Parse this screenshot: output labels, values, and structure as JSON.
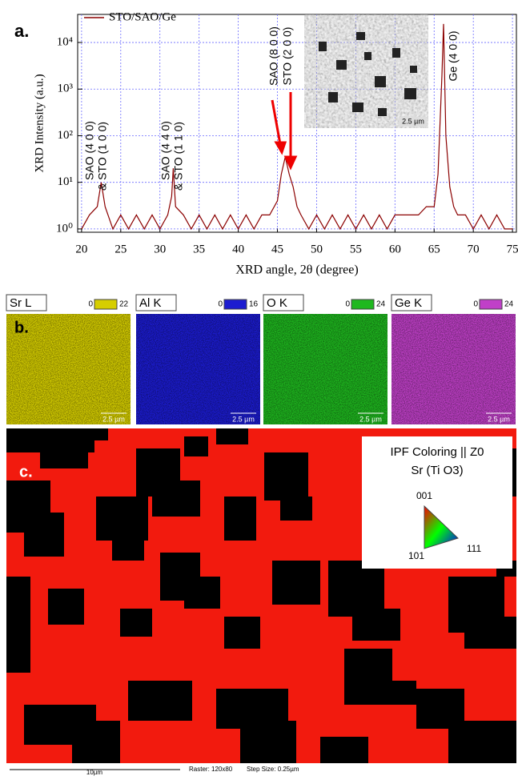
{
  "chart_data": {
    "type": "line",
    "panel_label": "a.",
    "xlabel": "XRD angle, 2θ (degree)",
    "ylabel": "XRD Intensity (a.u.)",
    "yscale": "log",
    "grid": true,
    "legend_position": "upper left",
    "x": [
      20,
      21,
      22,
      22.5,
      23,
      24,
      25,
      26,
      27,
      28,
      29,
      30,
      31,
      31.5,
      31.7,
      32,
      33,
      34,
      35,
      36,
      37,
      38,
      39,
      40,
      41,
      42,
      43,
      44,
      45,
      45.5,
      46,
      46.5,
      47,
      47.5,
      48,
      49,
      50,
      51,
      52,
      53,
      54,
      55,
      56,
      57,
      58,
      59,
      60,
      61,
      62,
      63,
      64,
      65,
      65.5,
      66,
      66.2,
      66.5,
      67,
      67.5,
      68,
      69,
      70,
      71,
      72,
      73,
      74,
      75
    ],
    "series": [
      {
        "name": "STO/SAO/Ge",
        "color": "#8b0000",
        "values": [
          1,
          2,
          3,
          10,
          3,
          1,
          2,
          1,
          2,
          1,
          2,
          1,
          2,
          5,
          20,
          3,
          2,
          1,
          2,
          1,
          2,
          1,
          2,
          1,
          2,
          1,
          2,
          2,
          4,
          15,
          35,
          15,
          8,
          3,
          2,
          1,
          2,
          1,
          2,
          1,
          2,
          1,
          2,
          1,
          2,
          1,
          2,
          2,
          2,
          2,
          3,
          3,
          15,
          2000,
          25000,
          100,
          8,
          3,
          2,
          2,
          1,
          2,
          1,
          2,
          1,
          1
        ]
      }
    ],
    "xlim": [
      19.5,
      75.5
    ],
    "ylim": [
      0.85,
      40000
    ],
    "xticks": [
      20,
      25,
      30,
      35,
      40,
      45,
      50,
      55,
      60,
      65,
      70,
      75
    ],
    "yticks": [
      {
        "value": 1,
        "label": "10⁰"
      },
      {
        "value": 10,
        "label": "10¹"
      },
      {
        "value": 100,
        "label": "10²"
      },
      {
        "value": 1000,
        "label": "10³"
      },
      {
        "value": 10000,
        "label": "10⁴"
      }
    ],
    "annotations": [
      "SAO (4 0 0)",
      "& STO (1 0 0)",
      "SAO (4 4 0)",
      "& STO (1 1 0)",
      "SAO (8 0 0)",
      "STO (2 0 0)",
      "Ge (4 0 0)"
    ],
    "inset": {
      "scale_bar": "2.5 µm"
    }
  },
  "eds_maps": {
    "panel_label": "b.",
    "maps": [
      {
        "label": "Sr L",
        "range": [
          0,
          22
        ],
        "color": "#d6ce00",
        "scale_bar": "2.5 µm"
      },
      {
        "label": "Al K",
        "range": [
          0,
          16
        ],
        "color": "#1c1cd0",
        "scale_bar": "2.5 µm"
      },
      {
        "label": "O K",
        "range": [
          0,
          24
        ],
        "color": "#1fb81f",
        "scale_bar": "2.5 µm"
      },
      {
        "label": "Ge K",
        "range": [
          0,
          24
        ],
        "color": "#c040c8",
        "scale_bar": "2.5 µm"
      }
    ]
  },
  "ebsd_map": {
    "panel_label": "c.",
    "legend": {
      "title": "IPF Coloring || Z0",
      "phase": "Sr (Ti O3)",
      "corners": [
        "001",
        "101",
        "111"
      ]
    },
    "scale_bar": "10µm",
    "raster": "Raster: 120x80",
    "step_size": "Step Size: 0.25µm"
  }
}
